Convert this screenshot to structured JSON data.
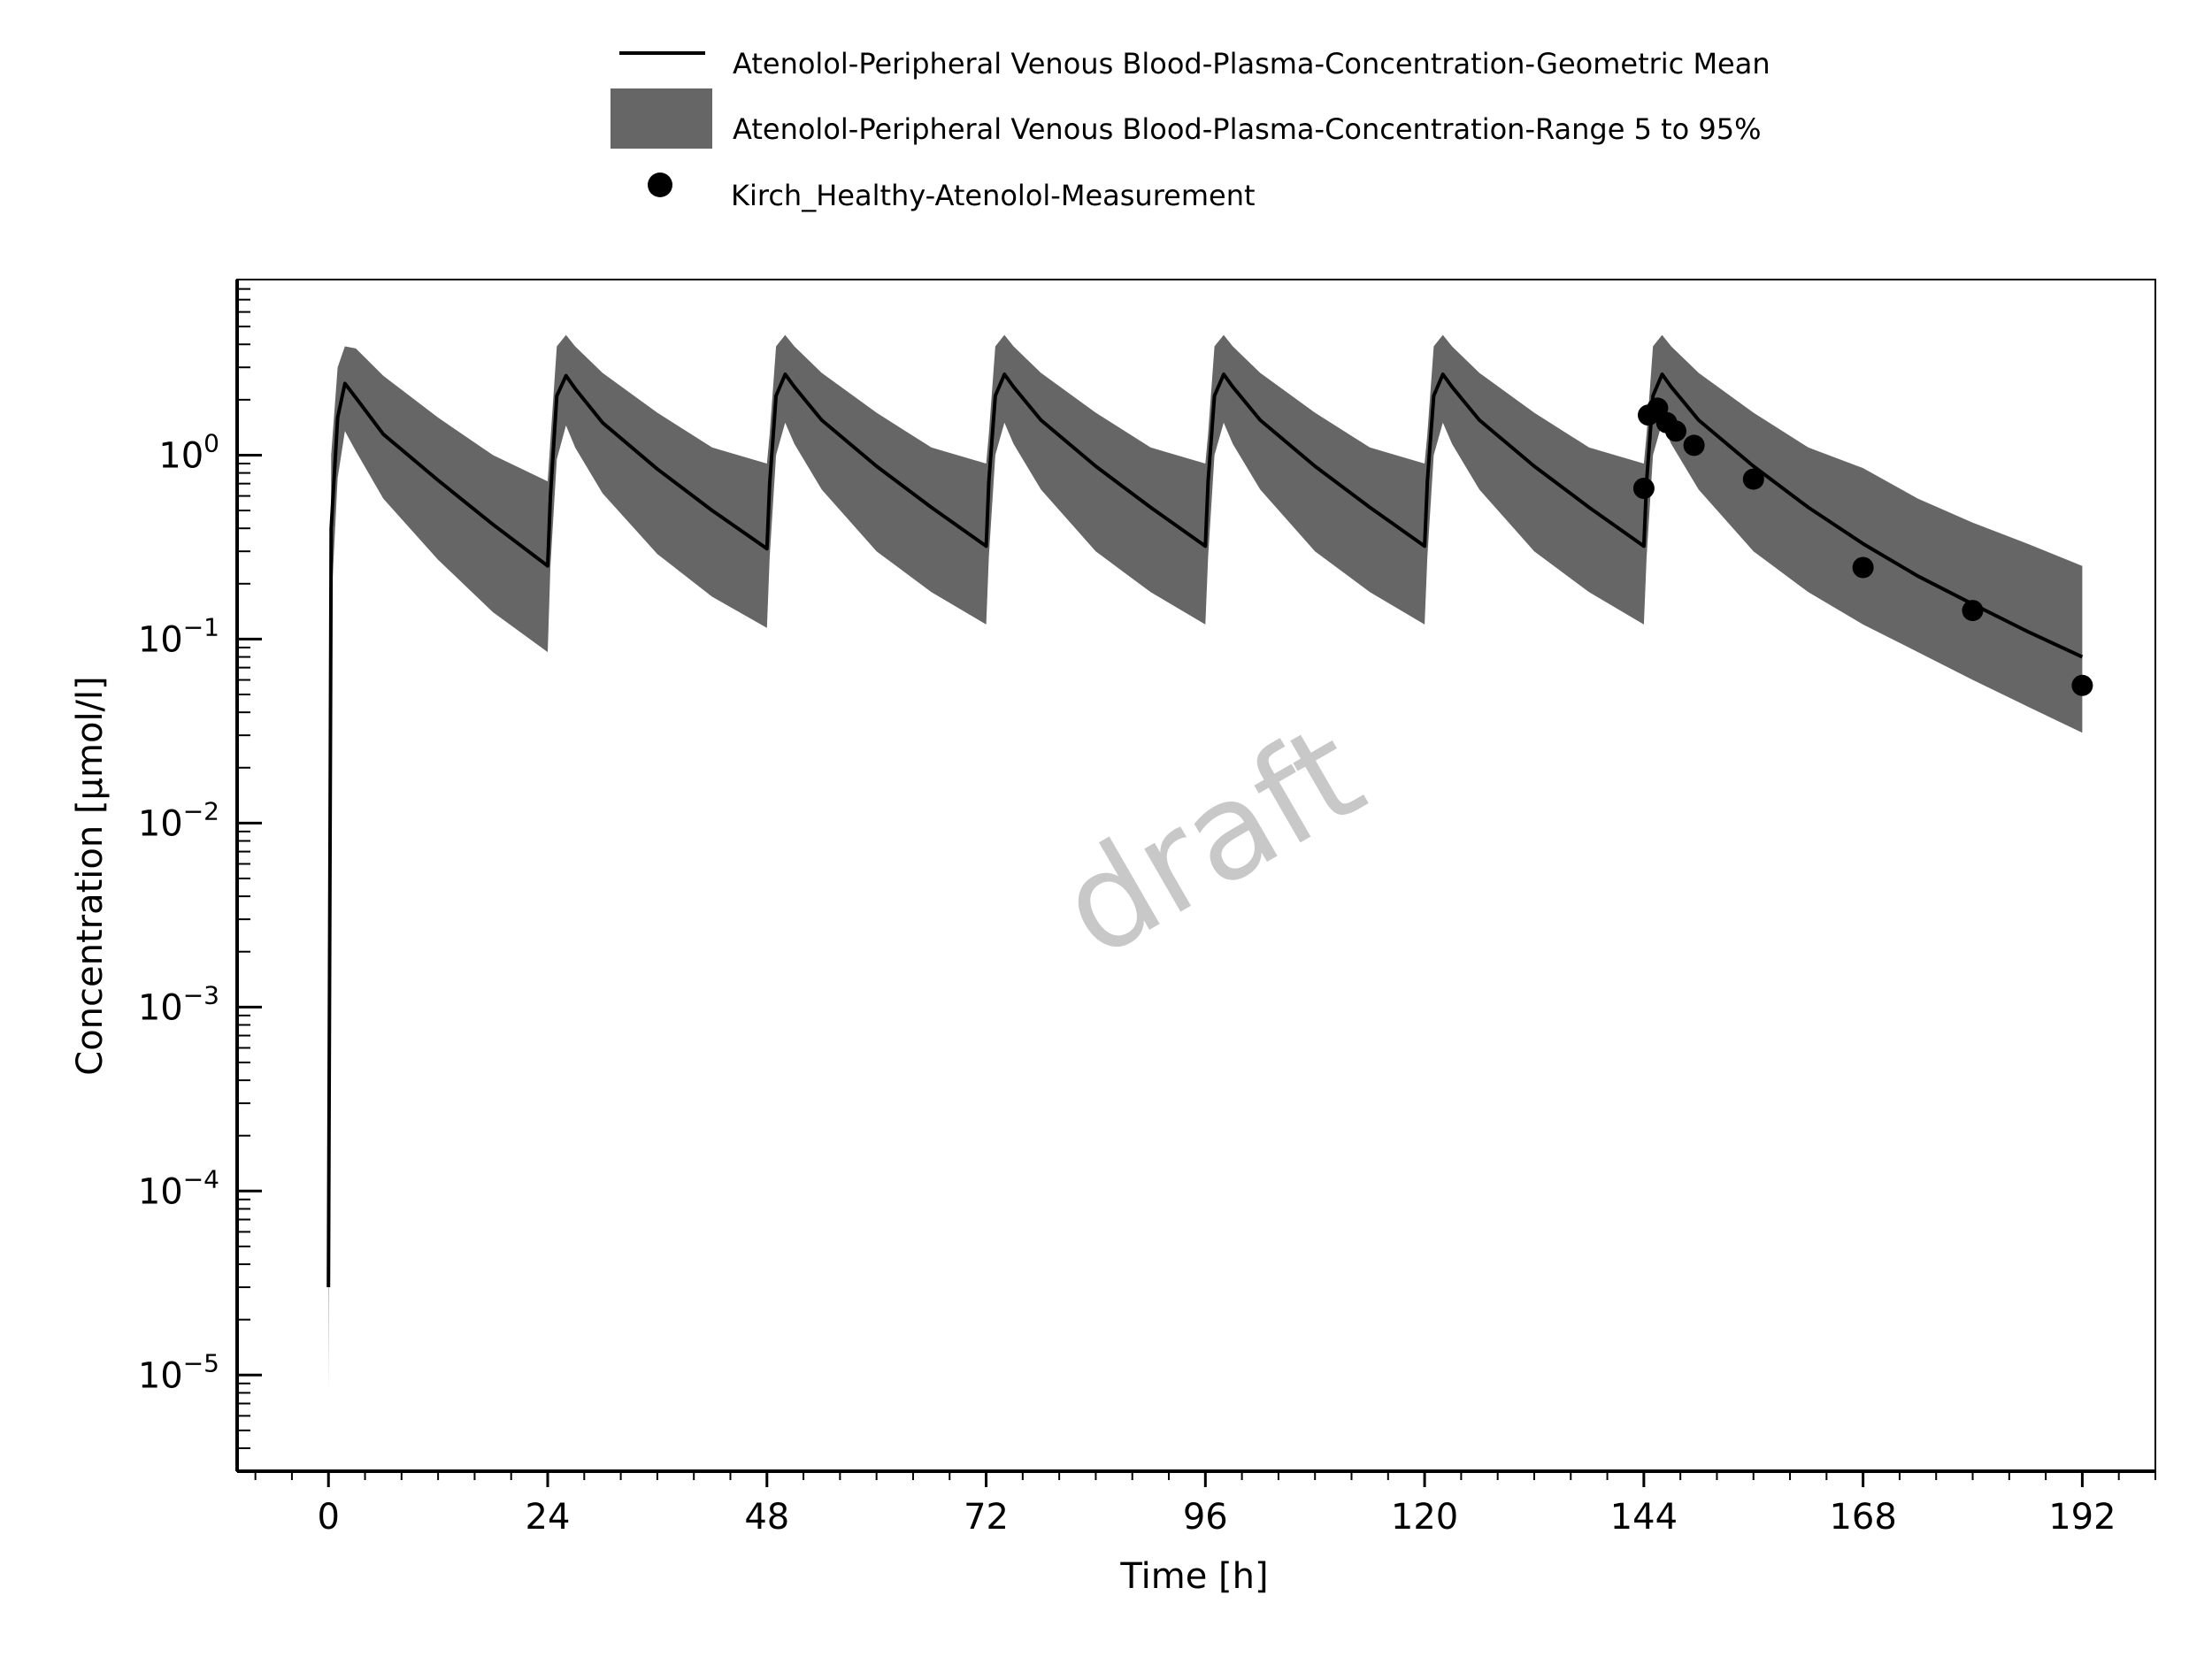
{
  "chart_data": {
    "type": "line",
    "xlabel": "Time [h]",
    "ylabel": "Concentration [µmol/l]",
    "xlim": [
      -10,
      200
    ],
    "ylim": [
      3e-06,
      9
    ],
    "yscale": "log",
    "xticks": [
      0,
      24,
      48,
      72,
      96,
      120,
      144,
      168,
      192
    ],
    "xtick_labels": [
      "0",
      "24",
      "48",
      "72",
      "96",
      "120",
      "144",
      "168",
      "192"
    ],
    "yticks": [
      {
        "value": 1,
        "base": "10",
        "exp": "0"
      },
      {
        "value": 0.1,
        "base": "10",
        "exp": "−1"
      },
      {
        "value": 0.01,
        "base": "10",
        "exp": "−2"
      },
      {
        "value": 0.001,
        "base": "10",
        "exp": "−3"
      },
      {
        "value": 0.0001,
        "base": "10",
        "exp": "−4"
      },
      {
        "value": 1e-05,
        "base": "10",
        "exp": "−5"
      }
    ],
    "grid": false,
    "legend_position": "top-center",
    "watermark": "draft",
    "series": [
      {
        "name": "Atenolol-Peripheral Venous Blood-Plasma-Concentration-Geometric Mean",
        "kind": "line",
        "color": "#000000",
        "x": [
          0,
          0.3,
          1.0,
          1.8,
          3,
          6,
          12,
          18,
          24,
          24.3,
          25,
          26,
          27,
          30,
          36,
          42,
          48,
          48.3,
          49,
          50,
          51,
          54,
          60,
          66,
          72,
          72.3,
          73,
          74,
          75,
          78,
          84,
          90,
          96,
          96.3,
          97,
          98,
          99,
          102,
          108,
          114,
          120,
          120.3,
          121,
          122,
          123,
          126,
          132,
          138,
          144,
          144.3,
          145,
          146,
          147,
          150,
          156,
          162,
          168,
          174,
          180,
          186,
          192
        ],
        "y": [
          3e-05,
          0.4,
          1.6,
          2.45,
          2.05,
          1.3,
          0.73,
          0.42,
          0.25,
          0.6,
          2.1,
          2.7,
          2.3,
          1.5,
          0.84,
          0.5,
          0.31,
          0.7,
          2.1,
          2.75,
          2.35,
          1.55,
          0.87,
          0.52,
          0.32,
          0.72,
          2.1,
          2.75,
          2.35,
          1.55,
          0.87,
          0.52,
          0.32,
          0.72,
          2.1,
          2.75,
          2.35,
          1.55,
          0.87,
          0.52,
          0.32,
          0.72,
          2.1,
          2.75,
          2.35,
          1.55,
          0.87,
          0.52,
          0.32,
          0.72,
          2.1,
          2.75,
          2.35,
          1.55,
          0.87,
          0.52,
          0.33,
          0.22,
          0.155,
          0.11,
          0.08
        ]
      },
      {
        "name": "Atenolol-Peripheral Venous Blood-Plasma-Concentration-Range 5 to 95%",
        "kind": "band",
        "color": "#666666",
        "x": [
          0,
          0.3,
          1.0,
          1.8,
          3,
          6,
          12,
          18,
          24,
          24.3,
          25,
          26,
          27,
          30,
          36,
          42,
          48,
          48.3,
          49,
          50,
          51,
          54,
          60,
          66,
          72,
          72.3,
          73,
          74,
          75,
          78,
          84,
          90,
          96,
          96.3,
          97,
          98,
          99,
          102,
          108,
          114,
          120,
          120.3,
          121,
          122,
          123,
          126,
          132,
          138,
          144,
          144.3,
          145,
          146,
          147,
          150,
          156,
          162,
          168,
          174,
          180,
          186,
          192
        ],
        "lower": [
          8e-06,
          0.15,
          0.75,
          1.35,
          1.05,
          0.58,
          0.27,
          0.14,
          0.085,
          0.25,
          0.95,
          1.45,
          1.1,
          0.62,
          0.29,
          0.17,
          0.115,
          0.28,
          1.0,
          1.5,
          1.15,
          0.65,
          0.3,
          0.18,
          0.12,
          0.28,
          1.0,
          1.5,
          1.15,
          0.65,
          0.3,
          0.18,
          0.12,
          0.28,
          1.0,
          1.5,
          1.15,
          0.65,
          0.3,
          0.18,
          0.12,
          0.28,
          1.0,
          1.5,
          1.15,
          0.65,
          0.3,
          0.18,
          0.12,
          0.28,
          1.0,
          1.5,
          1.15,
          0.65,
          0.3,
          0.18,
          0.12,
          0.085,
          0.06,
          0.043,
          0.031
        ],
        "upper": [
          3e-05,
          1.0,
          3.0,
          3.9,
          3.8,
          2.7,
          1.6,
          1.0,
          0.72,
          1.2,
          3.9,
          4.5,
          3.9,
          2.8,
          1.7,
          1.1,
          0.9,
          1.3,
          3.9,
          4.5,
          3.9,
          2.8,
          1.7,
          1.1,
          0.9,
          1.3,
          3.9,
          4.5,
          3.9,
          2.8,
          1.7,
          1.1,
          0.9,
          1.3,
          3.9,
          4.5,
          3.9,
          2.8,
          1.7,
          1.1,
          0.9,
          1.3,
          3.9,
          4.5,
          3.9,
          2.8,
          1.7,
          1.1,
          0.9,
          1.3,
          3.9,
          4.5,
          3.9,
          2.8,
          1.7,
          1.1,
          0.85,
          0.58,
          0.43,
          0.33,
          0.25
        ]
      },
      {
        "name": "Kirch_Healthy-Atenolol-Measurement",
        "kind": "scatter",
        "color": "#000000",
        "x": [
          144,
          144.5,
          145.5,
          146.5,
          147.5,
          149.5,
          156,
          168,
          180,
          192
        ],
        "y": [
          0.66,
          1.65,
          1.8,
          1.5,
          1.35,
          1.13,
          0.74,
          0.245,
          0.143,
          0.056
        ]
      }
    ]
  }
}
